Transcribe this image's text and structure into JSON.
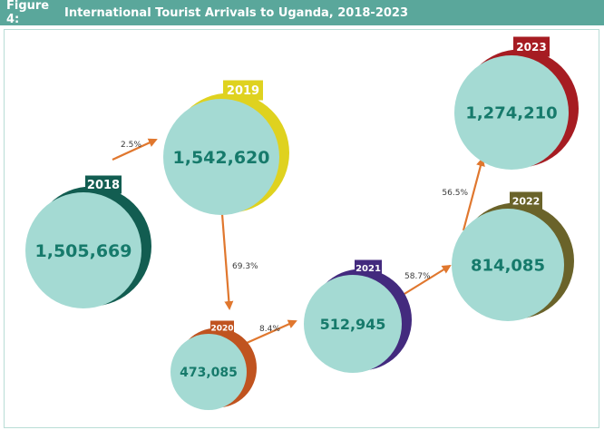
{
  "figure": {
    "label": "Figure 4:",
    "title": "International Tourist Arrivals to Uganda, 2018-2023"
  },
  "colors": {
    "header": "#5aa79b",
    "bubble": "#a4dad3",
    "value_text": "#167a6b",
    "arrow": "#e0772e",
    "year_2018": "#125d51",
    "year_2019": "#dfd21f",
    "year_2020": "#c0531f",
    "year_2021": "#432a7e",
    "year_2022": "#6a632a",
    "year_2023": "#a61c22"
  },
  "chart_data": {
    "type": "bubble-flow",
    "title": "International Tourist Arrivals to Uganda, 2018-2023",
    "points": [
      {
        "year": "2018",
        "arrivals": 1505669,
        "label": "1,505,669"
      },
      {
        "year": "2019",
        "arrivals": 1542620,
        "label": "1,542,620"
      },
      {
        "year": "2020",
        "arrivals": 473085,
        "label": "473,085"
      },
      {
        "year": "2021",
        "arrivals": 512945,
        "label": "512,945"
      },
      {
        "year": "2022",
        "arrivals": 814085,
        "label": "814,085"
      },
      {
        "year": "2023",
        "arrivals": 1274210,
        "label": "1,274,210"
      }
    ],
    "changes": [
      {
        "from": "2018",
        "to": "2019",
        "label": "2.5%"
      },
      {
        "from": "2019",
        "to": "2020",
        "label": "69.3%"
      },
      {
        "from": "2020",
        "to": "2021",
        "label": "8.4%"
      },
      {
        "from": "2021",
        "to": "2022",
        "label": "58.7%"
      },
      {
        "from": "2022",
        "to": "2023",
        "label": "56.5%"
      }
    ]
  }
}
